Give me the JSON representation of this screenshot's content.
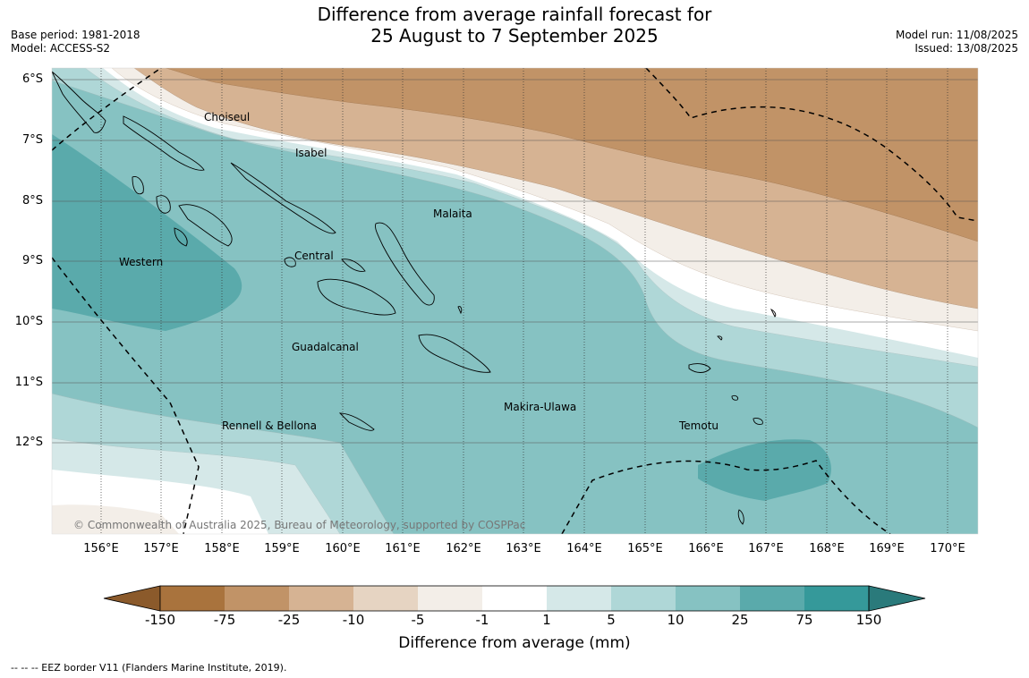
{
  "title": {
    "line1": "Difference from average rainfall forecast for",
    "line2": "25 August to 7 September 2025"
  },
  "meta_left": {
    "base_period": "Base period: 1981-2018",
    "model": "Model: ACCESS-S2"
  },
  "meta_right": {
    "model_run": "Model run: 11/08/2025",
    "issued": "Issued: 13/08/2025"
  },
  "map": {
    "latitude_labels": [
      "6°S",
      "7°S",
      "8°S",
      "9°S",
      "10°S",
      "11°S",
      "12°S"
    ],
    "longitude_labels": [
      "156°E",
      "157°E",
      "158°E",
      "159°E",
      "160°E",
      "161°E",
      "162°E",
      "163°E",
      "164°E",
      "165°E",
      "166°E",
      "167°E",
      "168°E",
      "169°E",
      "170°E"
    ],
    "places": [
      {
        "name": "Choiseul"
      },
      {
        "name": "Isabel"
      },
      {
        "name": "Malaita"
      },
      {
        "name": "Western"
      },
      {
        "name": "Central"
      },
      {
        "name": "Guadalcanal"
      },
      {
        "name": "Makira-Ulawa"
      },
      {
        "name": "Temotu"
      },
      {
        "name": "Rennell & Bellona"
      }
    ],
    "copyright": "© Commonwealth of Australia 2025, Bureau of Meteorology, supported by COSPPac"
  },
  "colorbar": {
    "ticks": [
      "-150",
      "-75",
      "-25",
      "-10",
      "-5",
      "-1",
      "1",
      "5",
      "10",
      "25",
      "75",
      "150"
    ],
    "colors": [
      "#8b5a2b",
      "#a9733d",
      "#c19367",
      "#d6b393",
      "#e6d4c2",
      "#f3eee8",
      "#ffffff",
      "#d5e8e8",
      "#afd7d7",
      "#86c2c2",
      "#5aaaab",
      "#35999a",
      "#2a7a7b"
    ],
    "label": "Difference from average (mm)"
  },
  "footer": {
    "legend_line": "--  --  -- EEZ border V11 (Flanders Marine Institute, 2019)."
  }
}
